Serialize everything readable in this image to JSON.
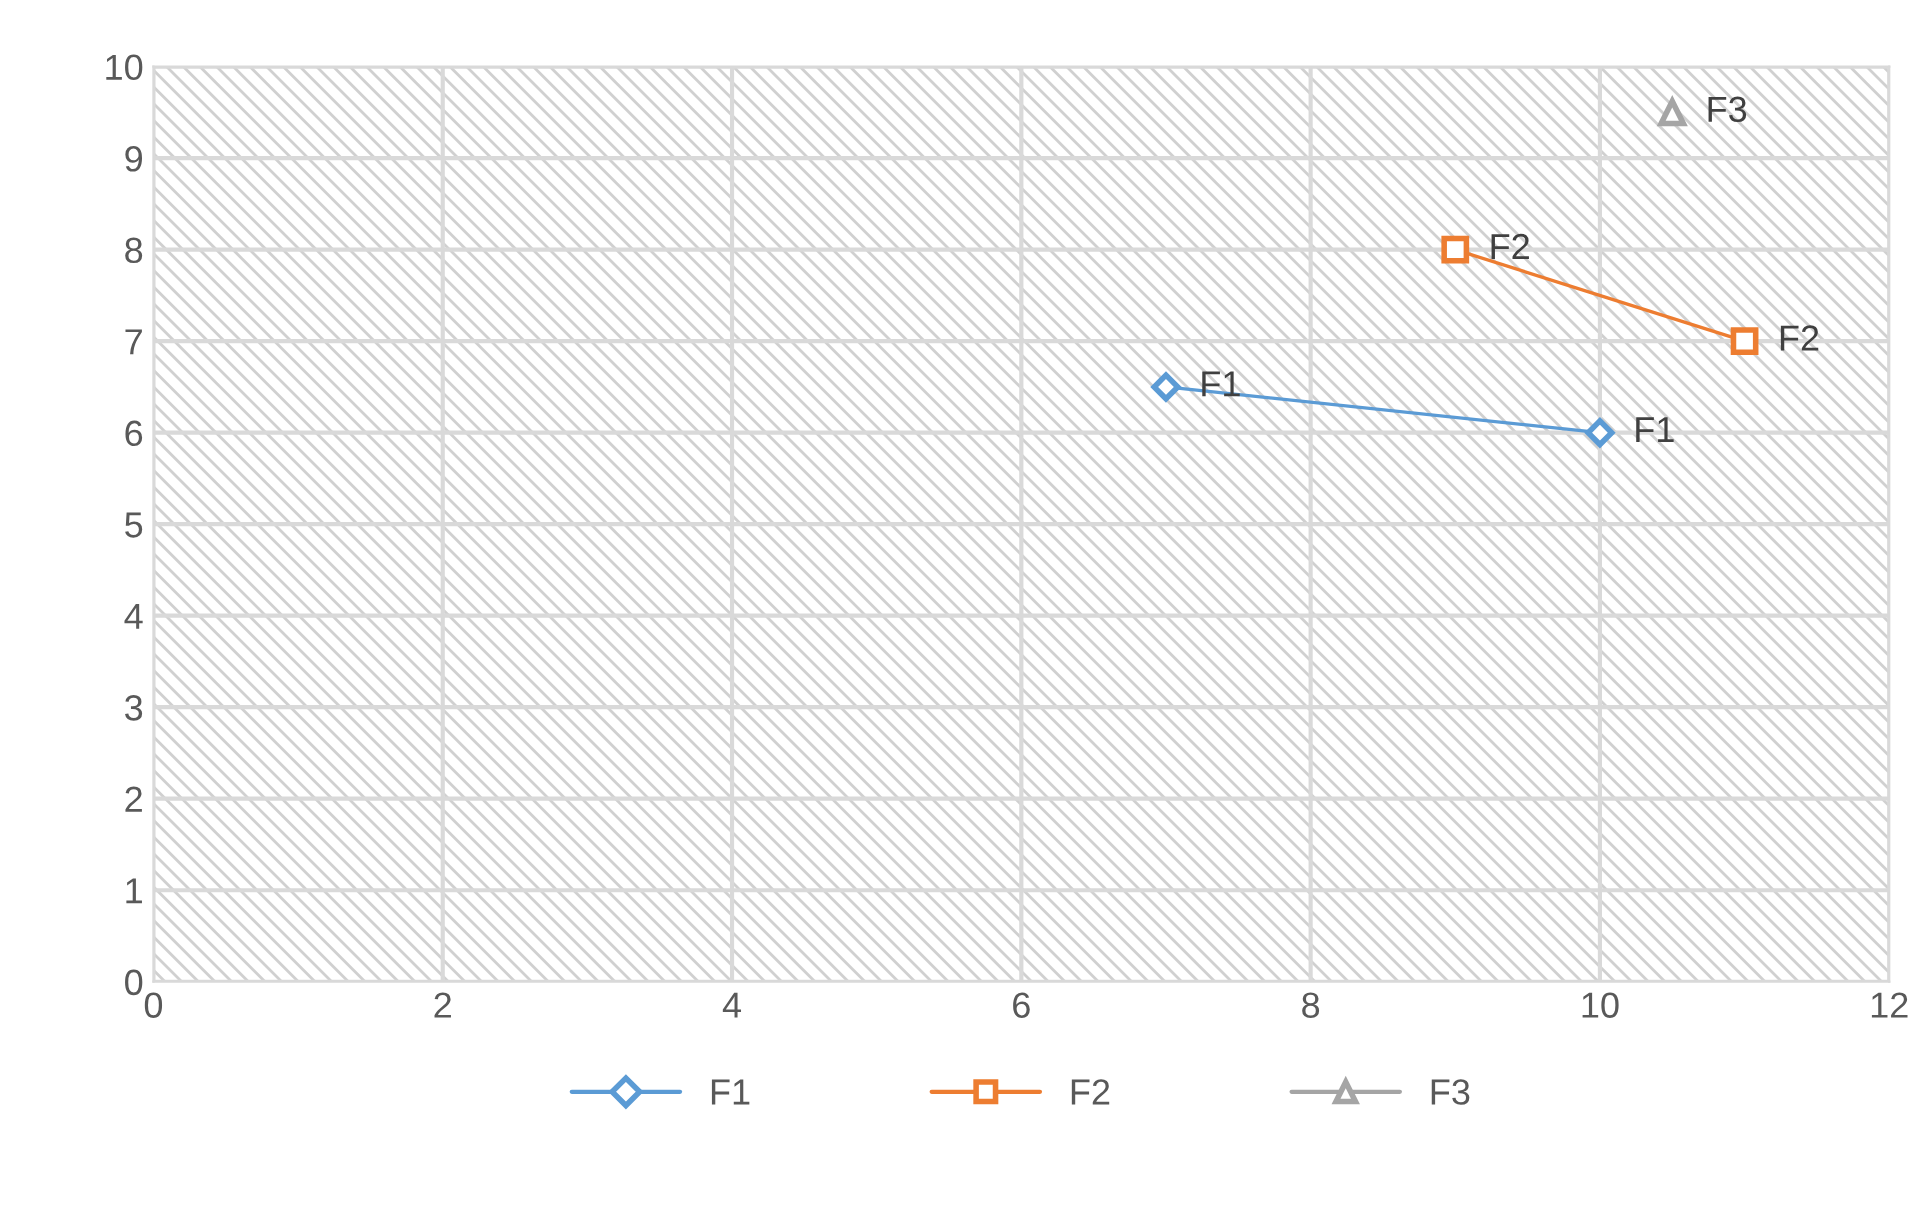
{
  "chart_data": {
    "type": "line",
    "xlim": [
      0,
      12
    ],
    "xticks": [
      0,
      2,
      4,
      6,
      8,
      10,
      12
    ],
    "ylim": [
      0,
      10
    ],
    "yticks": [
      0,
      1,
      2,
      3,
      4,
      5,
      6,
      7,
      8,
      9,
      10
    ],
    "grid": true,
    "legend": "bottom",
    "series": [
      {
        "name": "F1",
        "color": "#5b9bd5",
        "marker": "diamond",
        "x": [
          7,
          10
        ],
        "values": [
          6.5,
          6
        ]
      },
      {
        "name": "F2",
        "color": "#ed7d31",
        "marker": "square",
        "x": [
          9,
          11
        ],
        "values": [
          8,
          7
        ]
      },
      {
        "name": "F3",
        "color": "#a5a5a5",
        "marker": "triangle",
        "x": [
          10.5
        ],
        "values": [
          9.5
        ]
      }
    ],
    "annotations": [
      {
        "text": "F1",
        "x": 7,
        "y": 6.5
      },
      {
        "text": "F1",
        "x": 10,
        "y": 6
      },
      {
        "text": "F2",
        "x": 9,
        "y": 8
      },
      {
        "text": "F2",
        "x": 11,
        "y": 7
      },
      {
        "text": "F3",
        "x": 10.5,
        "y": 9.5
      }
    ]
  }
}
